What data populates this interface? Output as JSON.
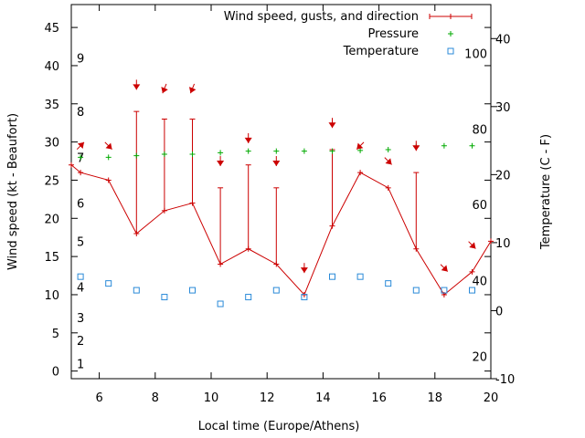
{
  "chart_data": {
    "type": "line",
    "xlabel": "Local time (Europe/Athens)",
    "ylabel_left": "Wind speed (kt - Beaufort)",
    "ylabel_right": "Temperature (C - F)",
    "xlim": [
      5,
      20
    ],
    "x_ticks": [
      6,
      8,
      10,
      12,
      14,
      16,
      18,
      20
    ],
    "ylim_left": [
      -1,
      48
    ],
    "y_ticks_left": [
      0,
      5,
      10,
      15,
      20,
      25,
      30,
      35,
      40,
      45
    ],
    "ylim_right": [
      -10,
      45
    ],
    "y_ticks_right": [
      -10,
      0,
      10,
      20,
      30,
      40
    ],
    "beaufort_labels": [
      {
        "label": "1",
        "kt": 1
      },
      {
        "label": "2",
        "kt": 4
      },
      {
        "label": "3",
        "kt": 7
      },
      {
        "label": "4",
        "kt": 11
      },
      {
        "label": "5",
        "kt": 17
      },
      {
        "label": "6",
        "kt": 22
      },
      {
        "label": "7",
        "kt": 28
      },
      {
        "label": "8",
        "kt": 34
      },
      {
        "label": "9",
        "kt": 41
      }
    ],
    "fahrenheit_labels": [
      {
        "label": "20",
        "c": -6.7
      },
      {
        "label": "40",
        "c": 4.4
      },
      {
        "label": "60",
        "c": 15.6
      },
      {
        "label": "80",
        "c": 26.7
      },
      {
        "label": "100",
        "c": 37.8
      }
    ],
    "series": [
      {
        "name": "Wind speed, gusts, and direction",
        "color": "#cc0000",
        "x": [
          5.0,
          5.33,
          6.33,
          7.33,
          8.33,
          9.33,
          10.33,
          11.33,
          12.33,
          13.33,
          14.33,
          15.33,
          16.33,
          17.33,
          18.33,
          19.33,
          20.0
        ],
        "y": [
          27,
          26,
          25,
          18,
          21,
          22,
          14,
          16,
          14,
          10,
          19,
          26,
          24,
          16,
          10,
          13,
          17
        ],
        "gust_x": [
          7.33,
          8.33,
          9.33,
          10.33,
          11.33,
          12.33,
          14.33,
          17.33
        ],
        "gust_base": [
          18,
          21,
          22,
          14,
          16,
          14,
          19,
          16
        ],
        "gust_top": [
          34,
          33,
          33,
          24,
          27,
          24,
          29,
          26
        ]
      },
      {
        "name": "Pressure",
        "color": "#00aa00",
        "x": [
          5.33,
          6.33,
          7.33,
          8.33,
          9.33,
          10.33,
          11.33,
          12.33,
          13.33,
          14.33,
          15.33,
          16.33,
          17.33,
          18.33,
          19.33
        ],
        "y": [
          28.0,
          28.0,
          28.2,
          28.4,
          28.4,
          28.6,
          28.8,
          28.8,
          28.8,
          28.8,
          28.9,
          29.0,
          29.4,
          29.5,
          29.5
        ]
      },
      {
        "name": "Temperature",
        "color": "#2a8ad8",
        "x": [
          5.33,
          6.33,
          7.33,
          8.33,
          9.33,
          10.33,
          11.33,
          12.33,
          13.33,
          14.33,
          15.33,
          16.33,
          17.33,
          18.33,
          19.33
        ],
        "y": [
          5,
          4,
          3,
          2,
          3,
          1,
          2,
          3,
          2,
          5,
          5,
          4,
          3,
          3,
          3
        ]
      }
    ],
    "direction_arrows": [
      {
        "x": 5.33,
        "kt": 29.5,
        "dir": "SW"
      },
      {
        "x": 6.33,
        "kt": 29.5,
        "dir": "NW"
      },
      {
        "x": 7.33,
        "kt": 37.5,
        "dir": "N"
      },
      {
        "x": 8.33,
        "kt": 37.0,
        "dir": "NNE"
      },
      {
        "x": 9.33,
        "kt": 37.0,
        "dir": "NNE"
      },
      {
        "x": 10.33,
        "kt": 27.5,
        "dir": "N"
      },
      {
        "x": 11.33,
        "kt": 30.5,
        "dir": "N"
      },
      {
        "x": 12.33,
        "kt": 27.5,
        "dir": "N"
      },
      {
        "x": 13.33,
        "kt": 13.5,
        "dir": "N"
      },
      {
        "x": 14.33,
        "kt": 32.5,
        "dir": "N"
      },
      {
        "x": 15.33,
        "kt": 29.5,
        "dir": "NE"
      },
      {
        "x": 16.33,
        "kt": 27.5,
        "dir": "NW"
      },
      {
        "x": 17.33,
        "kt": 29.5,
        "dir": "N"
      },
      {
        "x": 18.33,
        "kt": 13.5,
        "dir": "NW"
      },
      {
        "x": 19.33,
        "kt": 16.5,
        "dir": "NW"
      }
    ],
    "legend_position": "top-right",
    "grid": false
  }
}
